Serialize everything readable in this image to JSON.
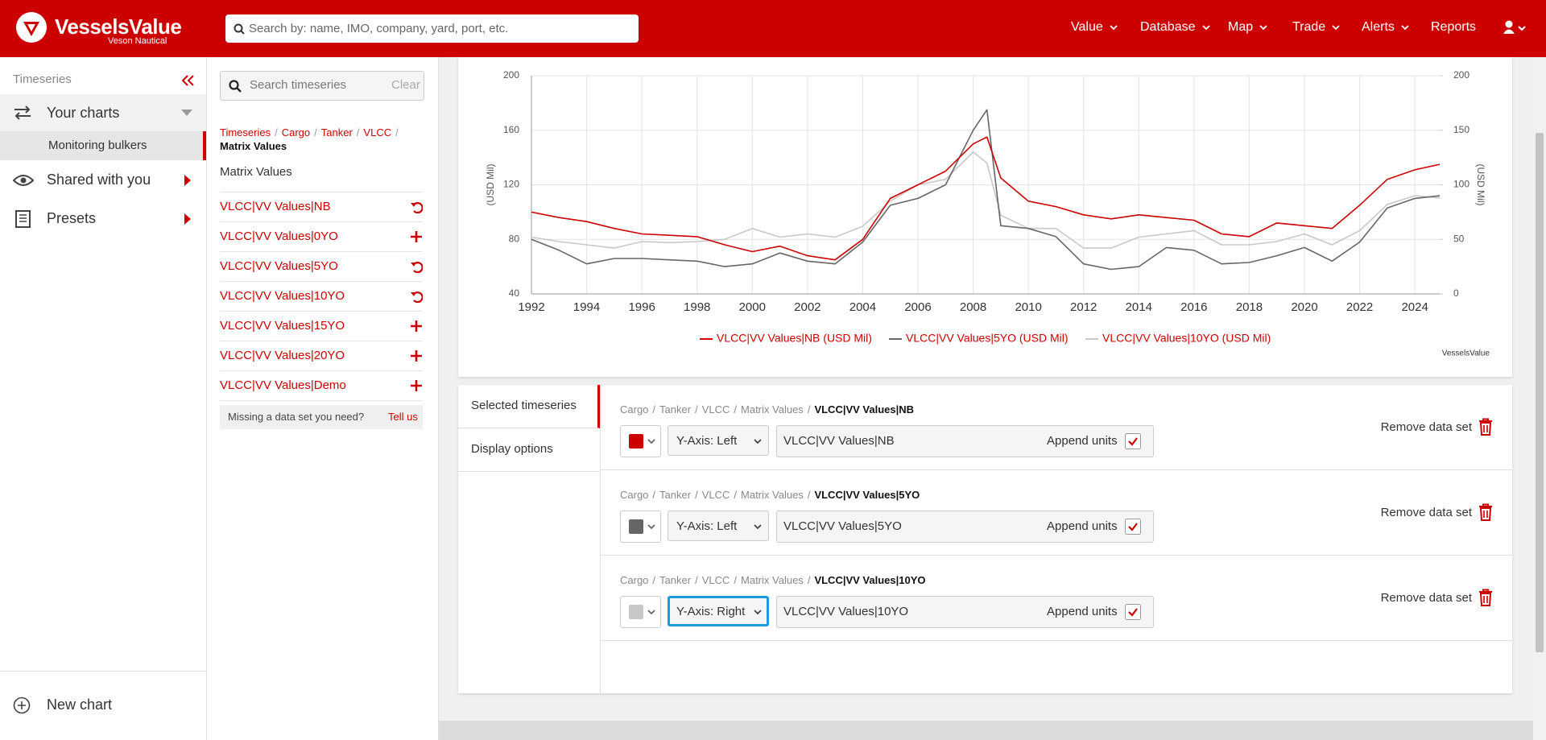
{
  "header": {
    "logo": "VesselsValue",
    "logo_sub": "Veson Nautical",
    "search_placeholder": "Search by: name, IMO, company, yard, port, etc.",
    "nav": [
      {
        "label": "Value",
        "menu": true
      },
      {
        "label": "Database",
        "menu": true
      },
      {
        "label": "Map",
        "menu": true
      },
      {
        "label": "Trade",
        "menu": true
      },
      {
        "label": "Alerts",
        "menu": true
      },
      {
        "label": "Reports",
        "menu": false
      }
    ]
  },
  "separator": "/",
  "sidebar": {
    "section": "Timeseries",
    "your_charts": "Your charts",
    "sub_item": "Monitoring bulkers",
    "shared": "Shared with you",
    "presets": "Presets",
    "new_chart": "New chart"
  },
  "browser": {
    "search_placeholder": "Search timeseries",
    "clear": "Clear",
    "breadcrumb": [
      "Timeseries",
      "Cargo",
      "Tanker",
      "VLCC"
    ],
    "breadcrumb_current": "Matrix Values",
    "heading": "Matrix Values",
    "items": [
      {
        "label": "VLCC|VV Values|NB",
        "selected": true
      },
      {
        "label": "VLCC|VV Values|0YO",
        "selected": false
      },
      {
        "label": "VLCC|VV Values|5YO",
        "selected": true
      },
      {
        "label": "VLCC|VV Values|10YO",
        "selected": true
      },
      {
        "label": "VLCC|VV Values|15YO",
        "selected": false
      },
      {
        "label": "VLCC|VV Values|20YO",
        "selected": false
      },
      {
        "label": "VLCC|VV Values|Demo",
        "selected": false
      }
    ],
    "missing": "Missing a data set you need?",
    "tell_us": "Tell us"
  },
  "chart_data": {
    "type": "line",
    "ylabel": "(USD Mil)",
    "y2label": "(USD Mil)",
    "credit": "VesselsValue",
    "grid": true,
    "x": [
      1992,
      1993,
      1994,
      1995,
      1996,
      1997,
      1998,
      1999,
      2000,
      2001,
      2002,
      2003,
      2004,
      2005,
      2006,
      2007,
      2008,
      2008.5,
      2009,
      2010,
      2011,
      2012,
      2013,
      2014,
      2015,
      2016,
      2017,
      2018,
      2019,
      2020,
      2021,
      2022,
      2023,
      2024,
      2024.9
    ],
    "xlim": [
      1992,
      2024.9
    ],
    "xticks": [
      1992,
      1994,
      1996,
      1998,
      2000,
      2002,
      2004,
      2006,
      2008,
      2010,
      2012,
      2014,
      2016,
      2018,
      2020,
      2022,
      2024
    ],
    "ylim": [
      40,
      200
    ],
    "yticks": [
      40,
      80,
      120,
      160,
      200
    ],
    "y2lim": [
      0,
      200
    ],
    "y2ticks": [
      0,
      50,
      100,
      150,
      200
    ],
    "series": [
      {
        "name": "VLCC|VV Values|NB (USD Mil)",
        "color": "#cc0000",
        "axis": "y",
        "values": [
          100,
          96,
          93,
          88,
          84,
          83,
          82,
          76,
          71,
          75,
          68,
          65,
          80,
          110,
          120,
          130,
          150,
          155,
          125,
          108,
          104,
          98,
          95,
          98,
          96,
          94,
          84,
          82,
          92,
          90,
          88,
          105,
          124,
          131,
          135
        ]
      },
      {
        "name": "VLCC|VV Values|5YO (USD Mil)",
        "color": "#666666",
        "axis": "y",
        "values": [
          80,
          72,
          62,
          66,
          66,
          65,
          64,
          60,
          62,
          70,
          64,
          62,
          78,
          105,
          110,
          120,
          160,
          175,
          90,
          88,
          82,
          62,
          58,
          60,
          74,
          72,
          62,
          63,
          68,
          74,
          64,
          78,
          103,
          110,
          112
        ]
      },
      {
        "name": "VLCC|VV Values|10YO (USD Mil)",
        "color": "#c8c8c8",
        "axis": "y2",
        "values": [
          52,
          48,
          45,
          42,
          48,
          47,
          48,
          50,
          60,
          52,
          55,
          52,
          62,
          85,
          100,
          105,
          130,
          120,
          72,
          60,
          60,
          42,
          42,
          52,
          55,
          58,
          45,
          45,
          48,
          55,
          45,
          58,
          82,
          90,
          88
        ]
      }
    ]
  },
  "selected": {
    "tabs": [
      "Selected timeseries",
      "Display options"
    ],
    "rows": [
      {
        "path": [
          "Cargo",
          "Tanker",
          "VLCC",
          "Matrix Values"
        ],
        "name": "VLCC|VV Values|NB",
        "color": "#cc0000",
        "axis": "Y-Axis: Left",
        "input": "VLCC|VV Values|NB",
        "append": "Append units",
        "remove": "Remove data set",
        "focused": false
      },
      {
        "path": [
          "Cargo",
          "Tanker",
          "VLCC",
          "Matrix Values"
        ],
        "name": "VLCC|VV Values|5YO",
        "color": "#666666",
        "axis": "Y-Axis: Left",
        "input": "VLCC|VV Values|5YO",
        "append": "Append units",
        "remove": "Remove data set",
        "focused": false
      },
      {
        "path": [
          "Cargo",
          "Tanker",
          "VLCC",
          "Matrix Values"
        ],
        "name": "VLCC|VV Values|10YO",
        "color": "#c8c8c8",
        "axis": "Y-Axis: Right",
        "input": "VLCC|VV Values|10YO",
        "append": "Append units",
        "remove": "Remove data set",
        "focused": true
      }
    ]
  }
}
